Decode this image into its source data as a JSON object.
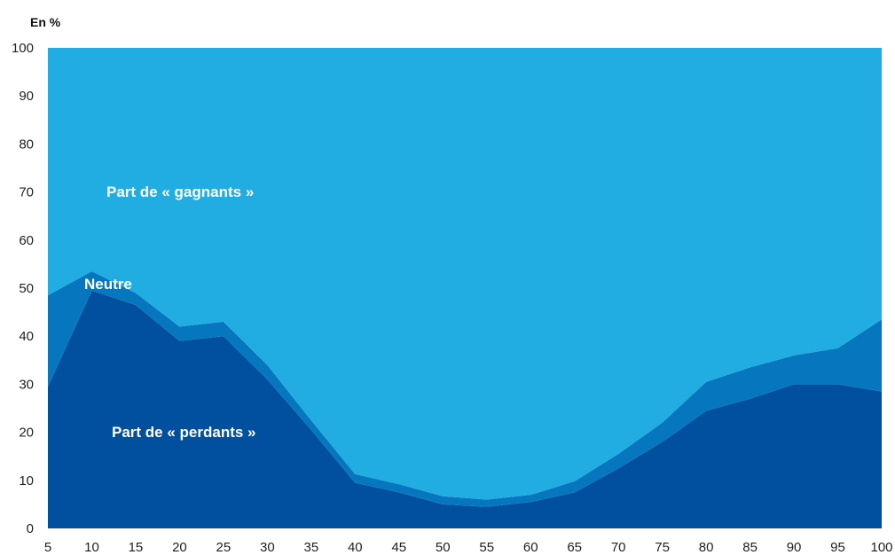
{
  "chart_data": {
    "type": "area",
    "stacked": true,
    "unit_label": "En %",
    "x": [
      5,
      10,
      15,
      20,
      25,
      30,
      35,
      40,
      45,
      50,
      55,
      60,
      65,
      70,
      75,
      80,
      85,
      90,
      95,
      100
    ],
    "xlim": [
      5,
      100
    ],
    "ylim": [
      0,
      100
    ],
    "yticks": [
      0,
      10,
      20,
      30,
      40,
      50,
      60,
      70,
      80,
      90,
      100
    ],
    "grid": false,
    "series": [
      {
        "name": "Part de « perdants »",
        "color": "#0150a0",
        "values": [
          29.5,
          49.5,
          46.5,
          39,
          40,
          31,
          20.5,
          9.5,
          7.5,
          5,
          4.5,
          5.5,
          7.5,
          12.5,
          18,
          24.5,
          27,
          30,
          30,
          28.5
        ]
      },
      {
        "name": "Neutre",
        "color": "#0677be",
        "values": [
          19,
          4,
          2.5,
          3,
          3,
          3,
          2,
          1.8,
          1.7,
          1.7,
          1.5,
          1.5,
          2.3,
          3,
          4,
          6,
          6.5,
          6,
          7.5,
          15
        ]
      },
      {
        "name": "Part de « gagnants »",
        "color": "#22ade2",
        "values": [
          51.5,
          46.5,
          51,
          58,
          57,
          66,
          77.5,
          88.7,
          90.8,
          93.3,
          94,
          93,
          90.2,
          84.5,
          78,
          69.5,
          66.5,
          64,
          62.5,
          56.5
        ]
      }
    ]
  }
}
